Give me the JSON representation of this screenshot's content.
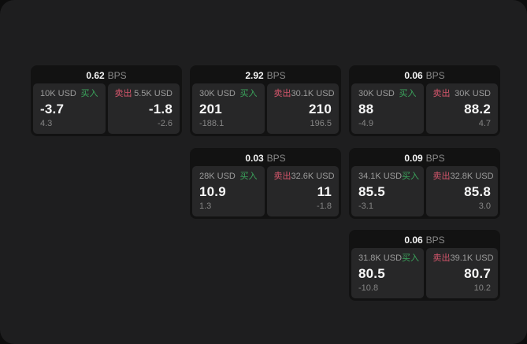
{
  "colors": {
    "buy": "#3ba55c",
    "sell": "#d4566b",
    "surface": "#1e1e1f",
    "card": "#121212",
    "pane": "#272728"
  },
  "labels": {
    "bps_unit": "BPS",
    "buy": "买入",
    "sell": "卖出"
  },
  "cards": [
    {
      "bps": "0.62",
      "buy": {
        "amount": "10K USD",
        "value": "-3.7",
        "delta": "4.3"
      },
      "sell": {
        "amount": "5.5K USD",
        "value": "-1.8",
        "delta": "-2.6"
      }
    },
    {
      "bps": "2.92",
      "buy": {
        "amount": "30K USD",
        "value": "201",
        "delta": "-188.1"
      },
      "sell": {
        "amount": "30.1K USD",
        "value": "210",
        "delta": "196.5"
      }
    },
    {
      "bps": "0.06",
      "buy": {
        "amount": "30K USD",
        "value": "88",
        "delta": "-4.9"
      },
      "sell": {
        "amount": "30K USD",
        "value": "88.2",
        "delta": "4.7"
      }
    },
    {
      "bps": "0.03",
      "buy": {
        "amount": "28K USD",
        "value": "10.9",
        "delta": "1.3"
      },
      "sell": {
        "amount": "32.6K USD",
        "value": "11",
        "delta": "-1.8"
      }
    },
    {
      "bps": "0.09",
      "buy": {
        "amount": "34.1K USD",
        "value": "85.5",
        "delta": "-3.1"
      },
      "sell": {
        "amount": "32.8K USD",
        "value": "85.8",
        "delta": "3.0"
      }
    },
    {
      "bps": "0.06",
      "buy": {
        "amount": "31.8K USD",
        "value": "80.5",
        "delta": "-10.8"
      },
      "sell": {
        "amount": "39.1K USD",
        "value": "80.7",
        "delta": "10.2"
      }
    }
  ]
}
